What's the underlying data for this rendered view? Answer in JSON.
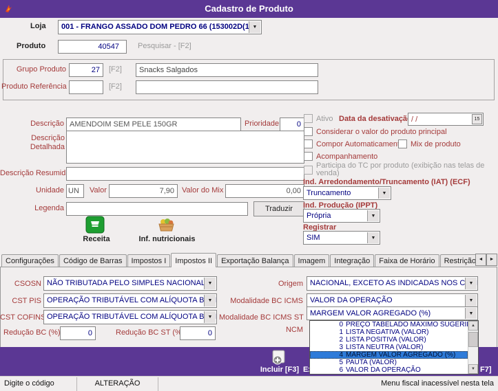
{
  "window": {
    "title": "Cadastro de Produto"
  },
  "colors": {
    "titlebar_purple": "#5B3794",
    "label_maroon": "#A43A3A",
    "value_navy": "#000080",
    "selection_blue": "#2E7BD9"
  },
  "header": {
    "loja_label": "Loja",
    "loja_value": "001 - FRANGO ASSADO DOM PEDRO 66 (153002D(153",
    "produto_label": "Produto",
    "produto_value": "40547",
    "pesquisar_hint": "Pesquisar - [F2]"
  },
  "group_box": {
    "grupo_produto_label": "Grupo Produto",
    "grupo_produto_code": "27",
    "grupo_f2": "[F2]",
    "grupo_produto_name": "Snacks Salgados",
    "produto_referencia_label": "Produto Referência",
    "produto_referencia_code": "",
    "referencia_f2": "[F2]",
    "produto_referencia_name": ""
  },
  "details": {
    "descricao_label": "Descrição",
    "descricao_value": "AMENDOIM SEM PELE 150GR",
    "prioridade_label": "Prioridade",
    "prioridade_value": "0",
    "descricao_detalhada_label": "Descrição Detalhada",
    "descricao_detalhada_value": "",
    "descricao_resumida_label": "Descrição Resumida",
    "descricao_resumida_value": "",
    "unidade_label": "Unidade",
    "unidade_value": "UN",
    "valor_label": "Valor",
    "valor_value": "7,90",
    "valor_mix_label": "Valor do Mix",
    "valor_mix_value": "0,00",
    "legenda_label": "Legenda",
    "legenda_value": "",
    "traduzir_button": "Traduzir",
    "receita_button": "Receita",
    "inf_nutricionais_button": "Inf. nutricionais"
  },
  "options": {
    "ativo_label": "Ativo",
    "data_desativacao_label": "Data da desativação",
    "data_desativacao_value": "/ /",
    "calendar_button": "15",
    "considerar_label": "Considerar o valor do produto principal",
    "compor_label": "Compor Automaticamente",
    "mix_label": "Mix de produto",
    "acompanhamento_label": "Acompanhamento",
    "participa_label": "Participa do TC por produto (exibição nas telas de venda)",
    "iat_label": "Ind. Arredondamento/Truncamento (IAT) (ECF)",
    "iat_value": "Truncamento",
    "ippt_label": "Ind. Produção (IPPT)",
    "ippt_value": "Própria",
    "registrar_label": "Registrar",
    "registrar_value": "SIM"
  },
  "tabs": {
    "items": [
      "Configurações",
      "Código de Barras",
      "Impostos I",
      "Impostos II",
      "Exportação Balança",
      "Imagem",
      "Integração",
      "Faixa de Horário",
      "Restrição dia da semana",
      "Aç"
    ],
    "active_index": 3,
    "scroll_left": "◄",
    "scroll_right": "►"
  },
  "tax_tab": {
    "csosn_label": "CSOSN",
    "csosn_value": "NÃO TRIBUTADA PELO SIMPLES NACIONAL",
    "cst_pis_label": "CST PIS",
    "cst_pis_value": "OPERAÇÃO TRIBUTÁVEL COM ALÍQUOTA BÁSICA",
    "cst_cofins_label": "CST COFINS",
    "cst_cofins_value": "OPERAÇÃO TRIBUTÁVEL COM ALÍQUOTA BÁSICA",
    "reducao_bc_label": "Redução BC (%)",
    "reducao_bc_value": "0",
    "reducao_bc_st_label": "Redução BC ST (%)",
    "reducao_bc_st_value": "0",
    "origem_label": "Origem",
    "origem_value": "NACIONAL, EXCETO AS INDICADAS NOS CODIGOS 3,",
    "modalidade_bc_icms_label": "Modalidade BC ICMS",
    "modalidade_bc_icms_value": "VALOR DA OPERAÇÃO",
    "modalidade_bc_icms_st_label": "Modalidade BC ICMS ST",
    "modalidade_bc_icms_st_value": "MARGEM VALOR AGREGADO (%)",
    "ncm_label": "NCM",
    "dropdown": {
      "selected_index": 4,
      "items": [
        {
          "code": "0",
          "label": "PREÇO TABELADO MÁXIMO SUGERIDO"
        },
        {
          "code": "1",
          "label": "LISTA NEGATIVA (VALOR)"
        },
        {
          "code": "2",
          "label": "LISTA POSITIVA (VALOR)"
        },
        {
          "code": "3",
          "label": "LISTA NEUTRA (VALOR)"
        },
        {
          "code": "4",
          "label": "MARGEM VALOR AGREGADO (%)"
        },
        {
          "code": "5",
          "label": "PAUTA (VALOR)"
        },
        {
          "code": "6",
          "label": "VALOR DA OPERAÇÃO"
        }
      ]
    }
  },
  "action_bar": {
    "incluir_label": "Incluir [F3]",
    "excluir_fragment": "Ex",
    "f7_fragment": "F7]"
  },
  "status_bar": {
    "left": "Digite o código",
    "mode": "ALTERAÇÃO",
    "right": "Menu fiscal inacessível nesta tela"
  }
}
